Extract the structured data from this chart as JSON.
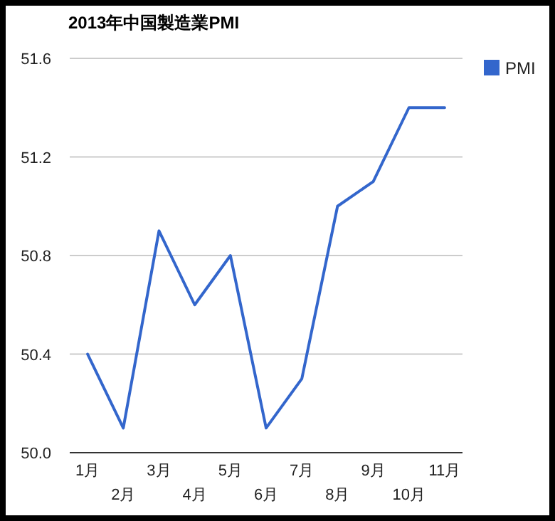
{
  "chart_data": {
    "type": "line",
    "title": "2013年中国製造業PMI",
    "categories": [
      "1月",
      "2月",
      "3月",
      "4月",
      "5月",
      "6月",
      "7月",
      "8月",
      "9月",
      "10月",
      "11月"
    ],
    "series": [
      {
        "name": "PMI",
        "color": "#3366cc",
        "values": [
          50.4,
          50.1,
          50.9,
          50.6,
          50.8,
          50.1,
          50.3,
          51.0,
          51.1,
          51.4,
          51.4
        ]
      }
    ],
    "ylim": [
      50.0,
      51.6
    ],
    "yticks": [
      {
        "value": 50.0,
        "label": "50.0"
      },
      {
        "value": 50.4,
        "label": "50.4"
      },
      {
        "value": 50.8,
        "label": "50.8"
      },
      {
        "value": 51.2,
        "label": "51.2"
      },
      {
        "value": 51.6,
        "label": "51.6"
      }
    ],
    "grid": "y",
    "legend": "top right",
    "marker": "none",
    "line_style": "solid"
  }
}
